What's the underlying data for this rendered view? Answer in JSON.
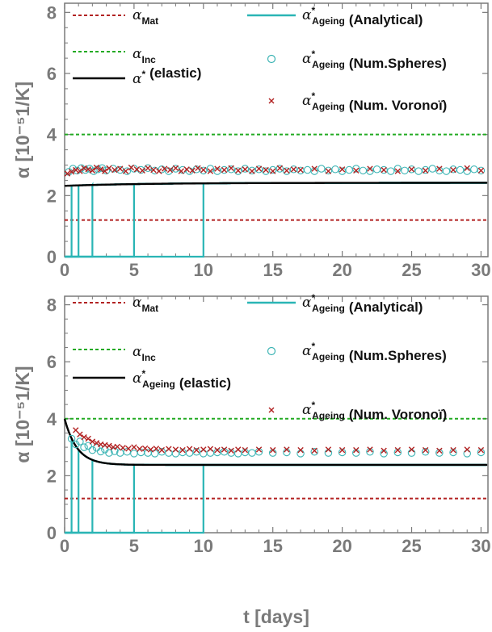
{
  "colors": {
    "mat": "#b22222",
    "inc": "#22aa22",
    "elastic": "#000000",
    "analytical": "#2ab5b5",
    "spheres": "#3cb4b4",
    "voronoi": "#b22222",
    "axis": "#7a7a7a"
  },
  "chart_data": [
    {
      "type": "line",
      "panel": "top",
      "ylabel": "α [10⁻⁵1/K]",
      "xlabel": "",
      "xlim": [
        0,
        30.5
      ],
      "ylim": [
        0,
        8.3
      ],
      "xticks": [
        0,
        5,
        10,
        15,
        20,
        25,
        30
      ],
      "yticks": [
        0,
        2,
        4,
        6,
        8
      ],
      "tick_labels_x": [
        "0",
        "5",
        "10",
        "15",
        "20",
        "25",
        "30"
      ],
      "tick_labels_y": [
        "0",
        "2",
        "4",
        "6",
        "8"
      ],
      "legend": {
        "mat": {
          "sym": "α",
          "sub": "Mat"
        },
        "inc": {
          "sym": "α",
          "sub": "Inc"
        },
        "elastic": {
          "sym": "α",
          "sup": "*",
          "sub": "",
          "text": "(elastic)"
        },
        "analytical": {
          "sym": "α",
          "sup": "*",
          "sub": "Ageing",
          "text": "(Analytical)"
        },
        "spheres": {
          "sym": "α",
          "sup": "*",
          "sub": "Ageing",
          "text": "(Num.Spheres)"
        },
        "voronoi": {
          "sym": "α",
          "sup": "*",
          "sub": "Ageing",
          "text": "(Num. Voronoï)"
        }
      },
      "hlines": {
        "mat": 1.2,
        "inc": 4.0
      },
      "elastic": {
        "start": 2.32,
        "end": 2.42,
        "tau": 6
      },
      "analytical_steps": [
        0.5,
        1,
        2,
        5,
        10
      ],
      "spheres": {
        "x": [
          0.3,
          0.6,
          0.9,
          1.2,
          1.5,
          1.8,
          2.1,
          2.4,
          2.7,
          3.0,
          3.5,
          4.0,
          4.5,
          5.0,
          5.5,
          6.0,
          6.5,
          7.0,
          7.5,
          8.0,
          8.5,
          9.0,
          9.5,
          10.0,
          10.5,
          11.0,
          11.5,
          12.0,
          12.5,
          13.0,
          13.5,
          14.0,
          14.5,
          15.0,
          15.5,
          16.0,
          16.5,
          17.0,
          17.5,
          18.0,
          18.5,
          19.0,
          19.5,
          20.0,
          20.5,
          21.0,
          21.5,
          22.0,
          22.5,
          23.0,
          23.5,
          24.0,
          24.5,
          25.0,
          25.5,
          26.0,
          26.5,
          27.0,
          27.5,
          28.0,
          28.5,
          29.0,
          29.5,
          30.0
        ],
        "y": [
          2.78,
          2.88,
          2.82,
          2.9,
          2.84,
          2.88,
          2.8,
          2.86,
          2.9,
          2.82,
          2.88,
          2.84,
          2.8,
          2.88,
          2.84,
          2.9,
          2.82,
          2.86,
          2.8,
          2.88,
          2.84,
          2.8,
          2.86,
          2.82,
          2.88,
          2.8,
          2.84,
          2.86,
          2.8,
          2.88,
          2.82,
          2.86,
          2.8,
          2.84,
          2.88,
          2.8,
          2.86,
          2.82,
          2.84,
          2.8,
          2.88,
          2.82,
          2.86,
          2.8,
          2.84,
          2.88,
          2.82,
          2.8,
          2.86,
          2.84,
          2.8,
          2.88,
          2.82,
          2.86,
          2.8,
          2.84,
          2.88,
          2.82,
          2.8,
          2.86,
          2.84,
          2.8,
          2.86,
          2.82
        ]
      },
      "voronoi": {
        "x": [
          0.2,
          0.5,
          0.8,
          1.1,
          1.4,
          1.7,
          2.0,
          2.3,
          2.6,
          2.9,
          3.2,
          3.6,
          4.0,
          4.4,
          4.8,
          5.2,
          5.6,
          6.0,
          6.4,
          6.8,
          7.2,
          7.6,
          8.0,
          8.4,
          8.8,
          9.2,
          9.6,
          10.0,
          10.5,
          11.0,
          11.5,
          12.0,
          12.5,
          13.0,
          13.5,
          14.0,
          14.5,
          15.0,
          15.5,
          16.0,
          16.5,
          17.0,
          18.0,
          19.0,
          20.0,
          21.0,
          22.0,
          23.0,
          24.0,
          25.0,
          26.0,
          27.0,
          28.0,
          29.0,
          30.0
        ],
        "y": [
          2.72,
          2.78,
          2.84,
          2.8,
          2.9,
          2.86,
          2.82,
          2.92,
          2.86,
          2.8,
          2.9,
          2.84,
          2.88,
          2.8,
          2.92,
          2.86,
          2.82,
          2.9,
          2.84,
          2.8,
          2.88,
          2.84,
          2.9,
          2.8,
          2.86,
          2.82,
          2.9,
          2.84,
          2.8,
          2.88,
          2.84,
          2.9,
          2.82,
          2.86,
          2.8,
          2.88,
          2.84,
          2.8,
          2.9,
          2.82,
          2.86,
          2.84,
          2.88,
          2.8,
          2.86,
          2.82,
          2.88,
          2.84,
          2.8,
          2.86,
          2.82,
          2.88,
          2.84,
          2.9,
          2.82
        ]
      }
    },
    {
      "type": "line",
      "panel": "bottom",
      "ylabel": "α [10⁻⁵1/K]",
      "xlabel": "t [days]",
      "xlim": [
        0,
        30.5
      ],
      "ylim": [
        0,
        8.3
      ],
      "xticks": [
        0,
        5,
        10,
        15,
        20,
        25,
        30
      ],
      "yticks": [
        0,
        2,
        4,
        6,
        8
      ],
      "tick_labels_x": [
        "0",
        "5",
        "10",
        "15",
        "20",
        "25",
        "30"
      ],
      "tick_labels_y": [
        "0",
        "2",
        "4",
        "6",
        "8"
      ],
      "legend": {
        "mat": {
          "sym": "α",
          "sub": "Mat"
        },
        "inc": {
          "sym": "α",
          "sub": "Inc"
        },
        "elastic": {
          "sym": "α",
          "sup": "*",
          "sub": "Ageing",
          "text": "(elastic)"
        },
        "analytical": {
          "sym": "α",
          "sup": "*",
          "sub": "Ageing",
          "text": "(Analytical)"
        },
        "spheres": {
          "sym": "α",
          "sup": "*",
          "sub": "Ageing",
          "text": "(Num.Spheres)"
        },
        "voronoi": {
          "sym": "α",
          "sup": "*",
          "sub": "Ageing",
          "text": "(Num. Voronoï)"
        }
      },
      "hlines": {
        "mat": 1.2,
        "inc": 4.0
      },
      "elastic": {
        "start": 4.0,
        "end": 2.38,
        "tau": 0.9
      },
      "analytical_steps": [
        0.5,
        1,
        2,
        5,
        10
      ],
      "spheres": {
        "x": [
          0.5,
          0.8,
          1.1,
          1.4,
          1.7,
          2.0,
          2.3,
          2.6,
          2.9,
          3.2,
          3.6,
          4.0,
          4.5,
          5.0,
          5.5,
          6.0,
          6.5,
          7.0,
          7.5,
          8.0,
          8.5,
          9.0,
          9.5,
          10.0,
          10.5,
          11.0,
          11.5,
          12.0,
          12.5,
          13.0,
          13.5,
          14.0,
          15.0,
          16.0,
          17.0,
          18.0,
          19.0,
          20.0,
          21.0,
          22.0,
          23.0,
          24.0,
          25.0,
          26.0,
          27.0,
          28.0,
          29.0,
          30.0
        ],
        "y": [
          3.3,
          3.1,
          3.2,
          3.0,
          3.05,
          2.9,
          2.98,
          2.85,
          2.92,
          2.8,
          2.86,
          2.8,
          2.84,
          2.78,
          2.82,
          2.8,
          2.78,
          2.84,
          2.8,
          2.78,
          2.82,
          2.8,
          2.84,
          2.78,
          2.8,
          2.82,
          2.84,
          2.8,
          2.78,
          2.82,
          2.8,
          2.84,
          2.8,
          2.82,
          2.78,
          2.84,
          2.8,
          2.82,
          2.8,
          2.84,
          2.78,
          2.82,
          2.8,
          2.84,
          2.8,
          2.82,
          2.78,
          2.82
        ]
      },
      "voronoi": {
        "x": [
          0.8,
          1.1,
          1.4,
          1.7,
          2.0,
          2.3,
          2.6,
          2.9,
          3.2,
          3.5,
          3.8,
          4.2,
          4.6,
          5.0,
          5.4,
          5.8,
          6.2,
          6.6,
          7.0,
          7.5,
          8.0,
          8.5,
          9.0,
          9.5,
          10.0,
          10.5,
          11.0,
          11.5,
          12.0,
          12.5,
          13.0,
          14.0,
          15.0,
          16.0,
          17.0,
          18.0,
          19.0,
          20.0,
          21.0,
          22.0,
          23.0,
          24.0,
          25.0,
          26.0,
          27.0,
          28.0,
          29.0,
          30.0
        ],
        "y": [
          3.6,
          3.45,
          3.35,
          3.3,
          3.2,
          3.15,
          3.1,
          3.08,
          3.05,
          3.0,
          3.02,
          2.98,
          2.95,
          3.0,
          2.94,
          2.96,
          2.92,
          2.95,
          2.9,
          2.94,
          2.92,
          2.9,
          2.94,
          2.9,
          2.92,
          2.94,
          2.9,
          2.92,
          2.88,
          2.92,
          2.9,
          2.92,
          2.9,
          2.92,
          2.9,
          2.88,
          2.92,
          2.9,
          2.9,
          2.92,
          2.88,
          2.9,
          2.92,
          2.9,
          2.88,
          2.9,
          2.92,
          2.9
        ]
      }
    }
  ]
}
